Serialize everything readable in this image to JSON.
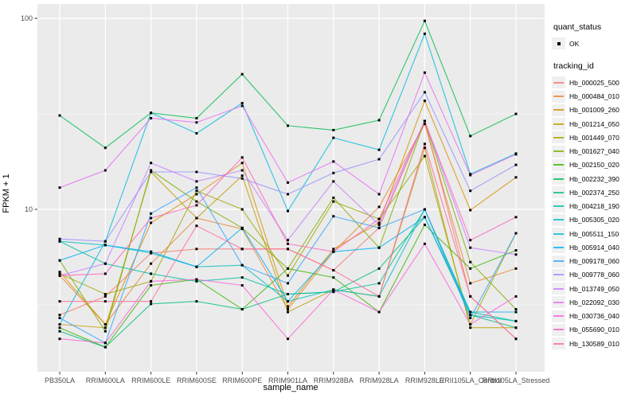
{
  "figure": {
    "background": "#FFFFFF",
    "panel_background": "#EBEBEB",
    "grid_color": "#FFFFFF",
    "tick_mark_color": "#333333",
    "tick_label_color": "#4D4D4D",
    "point_color": "#000000"
  },
  "legend": {
    "quant_status_title": "quant_status",
    "quant_status_items": [
      {
        "label": "OK",
        "marker": "black-square-point"
      }
    ],
    "tracking_id_title": "tracking_id"
  },
  "chart_data": {
    "type": "line",
    "title": "",
    "xlabel": "sample_name",
    "ylabel": "FPKM + 1",
    "y_scale": "log10",
    "ylim": [
      1.4,
      117
    ],
    "y_tick_labels": [
      "100",
      "10"
    ],
    "y_tick_values": [
      100,
      10
    ],
    "y_major_gridlines": [
      100,
      10
    ],
    "y_minor_gridlines": [
      31.62,
      3.162
    ],
    "grid": true,
    "legend_position": "right",
    "point_shape": "filled-square",
    "categories": [
      "PB350LA",
      "RRIM600LA",
      "RRIM600LE",
      "RRIM600SE",
      "RRIM600PE",
      "RRIM901LA",
      "RRIM928BA",
      "RRIM928LA",
      "RRIM928LE",
      "RRII105LA_Control",
      "RRII105LA_Stressed"
    ],
    "series": [
      {
        "name": "Hb_000025_500",
        "color": "#F8766D",
        "values": [
          2.8,
          3.5,
          5.9,
          6.2,
          6.2,
          6.2,
          4.8,
          8.0,
          29,
          3.5,
          2.1
        ]
      },
      {
        "name": "Hb_000484_010",
        "color": "#EA8331",
        "values": [
          4.5,
          2.5,
          5.2,
          9.0,
          7.9,
          3.0,
          6.0,
          10.3,
          28,
          4.1,
          4.9
        ]
      },
      {
        "name": "Hb_001009_260",
        "color": "#D89000",
        "values": [
          4.7,
          2.5,
          8.5,
          12.0,
          17.5,
          3.1,
          6.2,
          8.5,
          37,
          9.9,
          14.7
        ]
      },
      {
        "name": "Hb_001214_050",
        "color": "#C09B00",
        "values": [
          2.5,
          2.4,
          15.7,
          9.0,
          15.0,
          2.9,
          3.8,
          3.5,
          21,
          2.4,
          2.4
        ]
      },
      {
        "name": "Hb_001449_070",
        "color": "#A3A500",
        "values": [
          4.6,
          3.6,
          4.2,
          12.5,
          10.0,
          4.5,
          11.0,
          8.9,
          19,
          2.5,
          7.5
        ]
      },
      {
        "name": "Hb_001627_040",
        "color": "#7CAE00",
        "values": [
          5.4,
          2.3,
          16.0,
          11.0,
          8.0,
          4.9,
          11.5,
          6.3,
          29,
          5.3,
          3.0
        ]
      },
      {
        "name": "Hb_002150_020",
        "color": "#39B600",
        "values": [
          2.4,
          1.9,
          4.0,
          4.3,
          3.0,
          4.9,
          4.4,
          2.9,
          8.3,
          4.9,
          6.1
        ]
      },
      {
        "name": "Hb_002232_390",
        "color": "#00BB4E",
        "values": [
          31,
          21,
          32,
          30,
          51,
          27.4,
          26,
          29.3,
          97,
          24.2,
          31.6
        ]
      },
      {
        "name": "Hb_002374_250",
        "color": "#00BF7D",
        "values": [
          2.3,
          1.9,
          3.2,
          3.3,
          3.0,
          3.6,
          3.7,
          4.9,
          9.1,
          2.8,
          2.4
        ]
      },
      {
        "name": "Hb_004218_190",
        "color": "#00C1A3",
        "values": [
          6.8,
          5.2,
          4.6,
          4.2,
          4.4,
          3.6,
          3.7,
          4.1,
          10.0,
          2.9,
          2.6
        ]
      },
      {
        "name": "Hb_005305_020",
        "color": "#00BFC4",
        "values": [
          6.8,
          6.5,
          5.9,
          5.0,
          5.1,
          3.3,
          3.8,
          3.5,
          10.0,
          2.8,
          2.6
        ]
      },
      {
        "name": "Hb_005511_150",
        "color": "#00BAE0",
        "values": [
          2.5,
          6.8,
          32,
          25,
          36,
          9.8,
          23.7,
          20.5,
          83,
          15.3,
          19.6
        ]
      },
      {
        "name": "Hb_005914_040",
        "color": "#00B0F6",
        "values": [
          5.4,
          6.5,
          6.0,
          5.0,
          8.0,
          3.3,
          6.0,
          6.3,
          9.1,
          2.9,
          2.9
        ]
      },
      {
        "name": "Hb_009178_060",
        "color": "#35A2FF",
        "values": [
          2.7,
          2.0,
          9.5,
          13.0,
          5.1,
          4.1,
          9.2,
          8.0,
          10.0,
          2.7,
          7.5
        ]
      },
      {
        "name": "Hb_009778_060",
        "color": "#9590FF",
        "values": [
          7.0,
          6.8,
          15.7,
          15.7,
          14.5,
          12.0,
          15.5,
          18.3,
          41,
          12.5,
          17.1
        ]
      },
      {
        "name": "Hb_013749_050",
        "color": "#C77CFF",
        "values": [
          4.5,
          5.2,
          17.5,
          14.0,
          16.0,
          6.9,
          14.0,
          8.3,
          29,
          6.3,
          5.8
        ]
      },
      {
        "name": "Hb_022092_030",
        "color": "#E76BF3",
        "values": [
          13.0,
          16.0,
          30,
          28.5,
          34.8,
          13.8,
          17.8,
          12.0,
          52,
          15.1,
          19.4
        ]
      },
      {
        "name": "Hb_030736_040",
        "color": "#FA62DB",
        "values": [
          2.1,
          2.0,
          4.2,
          4.3,
          4.0,
          2.1,
          3.8,
          2.9,
          6.6,
          2.5,
          3.5
        ]
      },
      {
        "name": "Hb_055690_010",
        "color": "#FF62BC",
        "values": [
          4.5,
          4.6,
          9.0,
          10.5,
          18.7,
          6.6,
          6.0,
          8.9,
          29,
          6.9,
          9.1
        ]
      },
      {
        "name": "Hb_130589_010",
        "color": "#FF6A98",
        "values": [
          3.3,
          3.3,
          3.3,
          8.2,
          6.2,
          6.2,
          4.8,
          3.5,
          22,
          3.5,
          2.1
        ]
      }
    ]
  }
}
